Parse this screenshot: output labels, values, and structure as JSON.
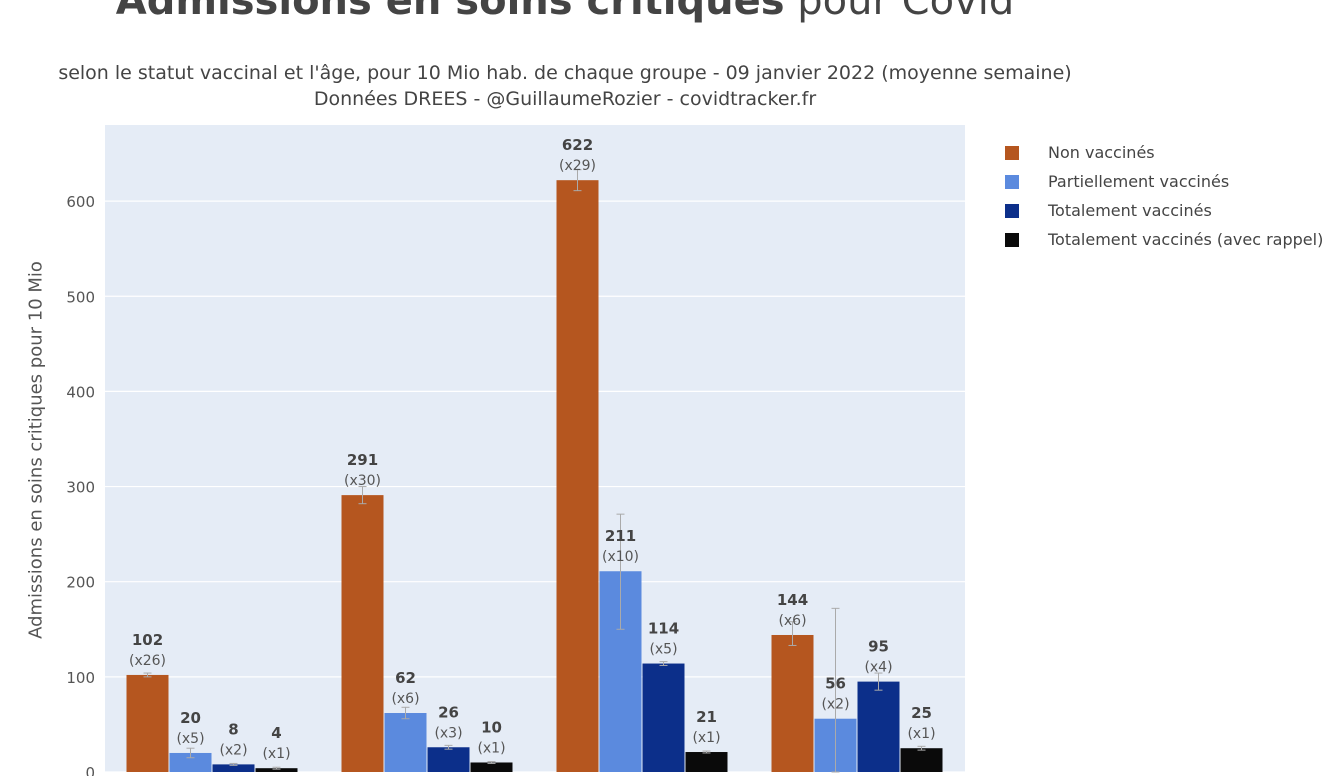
{
  "chart_data": {
    "type": "bar",
    "title_bold": "Admissions en soins critiques",
    "title_rest": " pour Covid",
    "subtitle_line1": "selon le statut vaccinal et l'âge, pour 10 Mio hab. de chaque groupe - 09 janvier 2022 (moyenne semaine)",
    "subtitle_line2": "Données DREES - @GuillaumeRozier - covidtracker.fr",
    "ylabel": "Admissions en soins critiques pour 10 Mio",
    "ylim": [
      0,
      680
    ],
    "yticks": [
      0,
      100,
      200,
      300,
      400,
      500,
      600
    ],
    "grid": true,
    "legend_position": "top-right",
    "categories": [
      "",
      "",
      "",
      ""
    ],
    "series": [
      {
        "name": "Non vaccinés",
        "color": "#b5561f",
        "values": [
          102,
          291,
          622,
          144
        ],
        "ratios": [
          "(x26)",
          "(x30)",
          "(x29)",
          "(x6)"
        ],
        "error": [
          [
            100,
            104
          ],
          [
            282,
            300
          ],
          [
            611,
            633
          ],
          [
            133,
            158
          ]
        ]
      },
      {
        "name": "Partiellement vaccinés",
        "color": "#5b8ade",
        "values": [
          20,
          62,
          211,
          56
        ],
        "ratios": [
          "(x5)",
          "(x6)",
          "(x10)",
          "(x2)"
        ],
        "error": [
          [
            15,
            25
          ],
          [
            56,
            68
          ],
          [
            150,
            271
          ],
          [
            0,
            172
          ]
        ]
      },
      {
        "name": "Totalement vaccinés",
        "color": "#0c2f8a",
        "values": [
          8,
          26,
          114,
          95
        ],
        "ratios": [
          "(x2)",
          "(x3)",
          "(x5)",
          "(x4)"
        ],
        "error": [
          [
            7,
            9
          ],
          [
            24,
            28
          ],
          [
            112,
            116
          ],
          [
            86,
            104
          ]
        ]
      },
      {
        "name": "Totalement vaccinés (avec rappel)",
        "color": "#0a0a0a",
        "values": [
          4,
          10,
          21,
          25
        ],
        "ratios": [
          "(x1)",
          "(x1)",
          "(x1)",
          "(x1)"
        ],
        "error": [
          [
            3,
            5
          ],
          [
            9,
            11
          ],
          [
            20,
            22
          ],
          [
            23,
            27
          ]
        ]
      }
    ]
  }
}
